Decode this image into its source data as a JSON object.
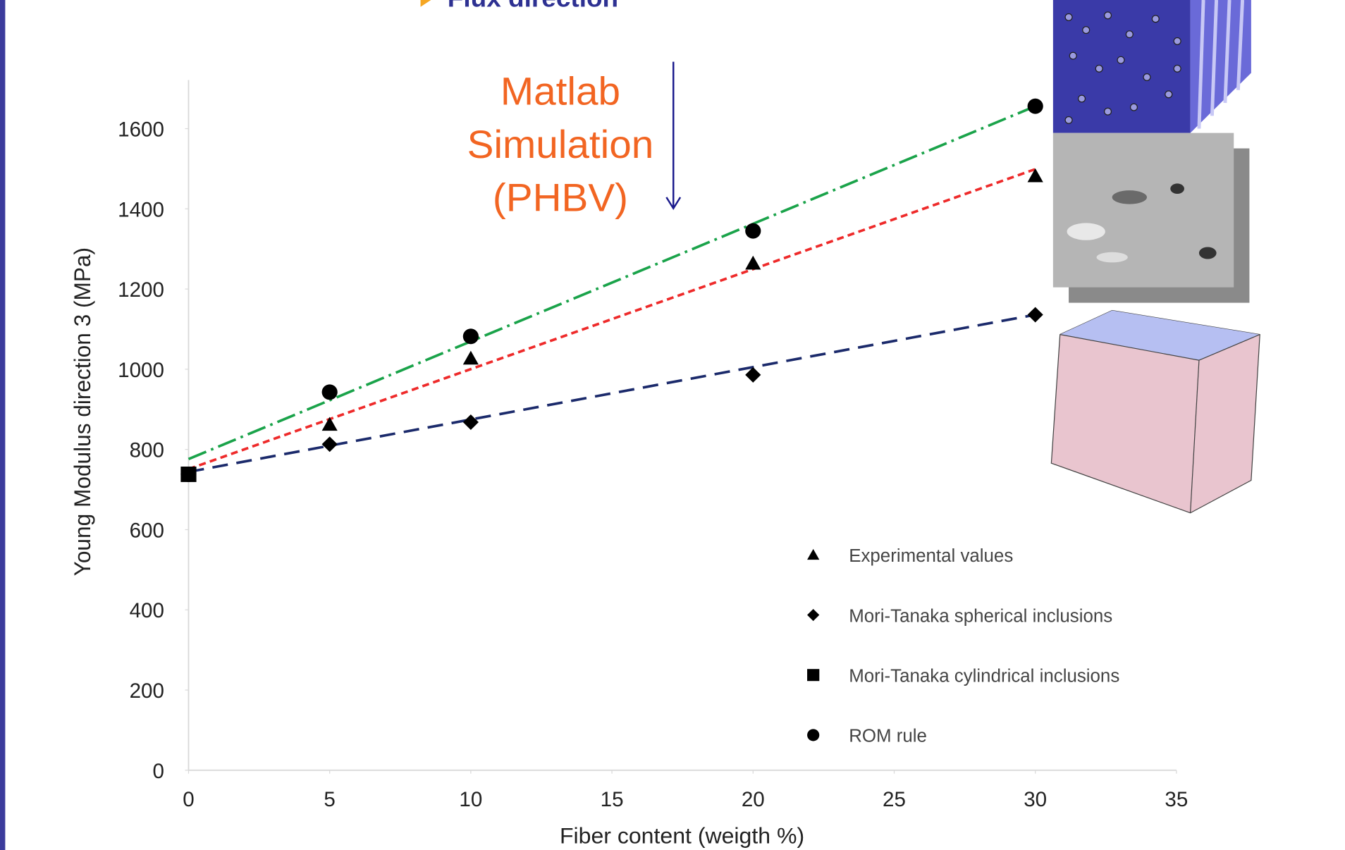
{
  "header_text": "Flux direction",
  "chart_data": {
    "type": "scatter",
    "annotations": [
      "Matlab",
      "Simulation",
      "(PHBV)"
    ],
    "x_label": "Fiber content (weigth %)",
    "y_label": "Young Modulus direction 3 (MPa)",
    "x": [
      0,
      5,
      10,
      20,
      30
    ],
    "xlim": [
      0,
      35
    ],
    "xticks": [
      0,
      5,
      10,
      15,
      20,
      25,
      30,
      35
    ],
    "ylim": [
      0,
      1700
    ],
    "yticks": [
      0,
      200,
      400,
      600,
      800,
      1000,
      1200,
      1400,
      1600
    ],
    "grid": false,
    "legend": "lower right",
    "series": [
      {
        "name": "Experimental values",
        "marker": "triangle",
        "color": "#000000",
        "values": [
          738,
          862,
          1027,
          1264,
          1482
        ]
      },
      {
        "name": "Mori-Tanaka spherical inclusions",
        "marker": "diamond",
        "color": "#000000",
        "values": [
          738,
          813,
          868,
          986,
          1136
        ]
      },
      {
        "name": "Mori-Tanaka cylindrical inclusions",
        "marker": "square",
        "color": "#000000",
        "values": [
          738,
          null,
          null,
          null,
          null
        ]
      },
      {
        "name": "ROM rule",
        "marker": "circle",
        "color": "#000000",
        "values": [
          738,
          943,
          1082,
          1345,
          1656
        ]
      }
    ],
    "trendlines": [
      {
        "color": "#1aa34a",
        "dash": "22 6 3 6",
        "x": [
          0,
          30
        ],
        "values": [
          776,
          1656
        ]
      },
      {
        "color": "#ee2a2a",
        "dash": "8 5",
        "x": [
          0,
          30
        ],
        "values": [
          751,
          1499
        ]
      },
      {
        "color": "#1b2a6b",
        "dash": "18 10",
        "x": [
          0,
          30
        ],
        "values": [
          744,
          1136
        ]
      }
    ]
  }
}
